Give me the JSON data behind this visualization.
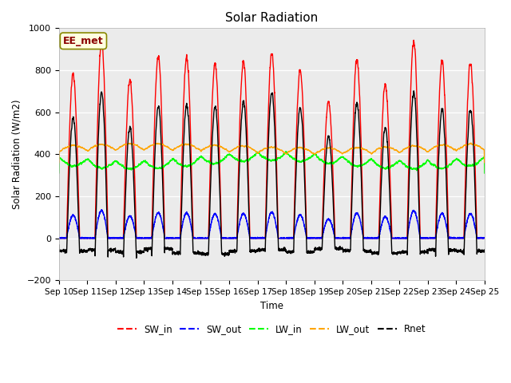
{
  "title": "Solar Radiation",
  "ylabel": "Solar Radiation (W/m2)",
  "xlabel": "Time",
  "ylim": [
    -200,
    1000
  ],
  "annotation": "EE_met",
  "x_tick_labels": [
    "Sep 10",
    "Sep 11",
    "Sep 12",
    "Sep 13",
    "Sep 14",
    "Sep 15",
    "Sep 16",
    "Sep 17",
    "Sep 18",
    "Sep 19",
    "Sep 20",
    "Sep 21",
    "Sep 22",
    "Sep 23",
    "Sep 24",
    "Sep 25"
  ],
  "bg_color": "#ebebeb",
  "fig_color": "#ffffff",
  "series": {
    "SW_in": {
      "color": "red",
      "lw": 1.0
    },
    "SW_out": {
      "color": "blue",
      "lw": 1.0
    },
    "LW_in": {
      "color": "lime",
      "lw": 1.0
    },
    "LW_out": {
      "color": "orange",
      "lw": 1.0
    },
    "Rnet": {
      "color": "black",
      "lw": 1.0
    }
  },
  "n_days": 15,
  "ppd": 288,
  "sw_in_peaks": [
    780,
    940,
    750,
    870,
    860,
    830,
    840,
    880,
    800,
    650,
    850,
    730,
    940,
    840,
    835
  ],
  "night_rnet": [
    -60,
    -55,
    -65,
    -50,
    -70,
    -75,
    -60,
    -55,
    -65,
    -50,
    -60,
    -70,
    -65,
    -55,
    -60
  ]
}
